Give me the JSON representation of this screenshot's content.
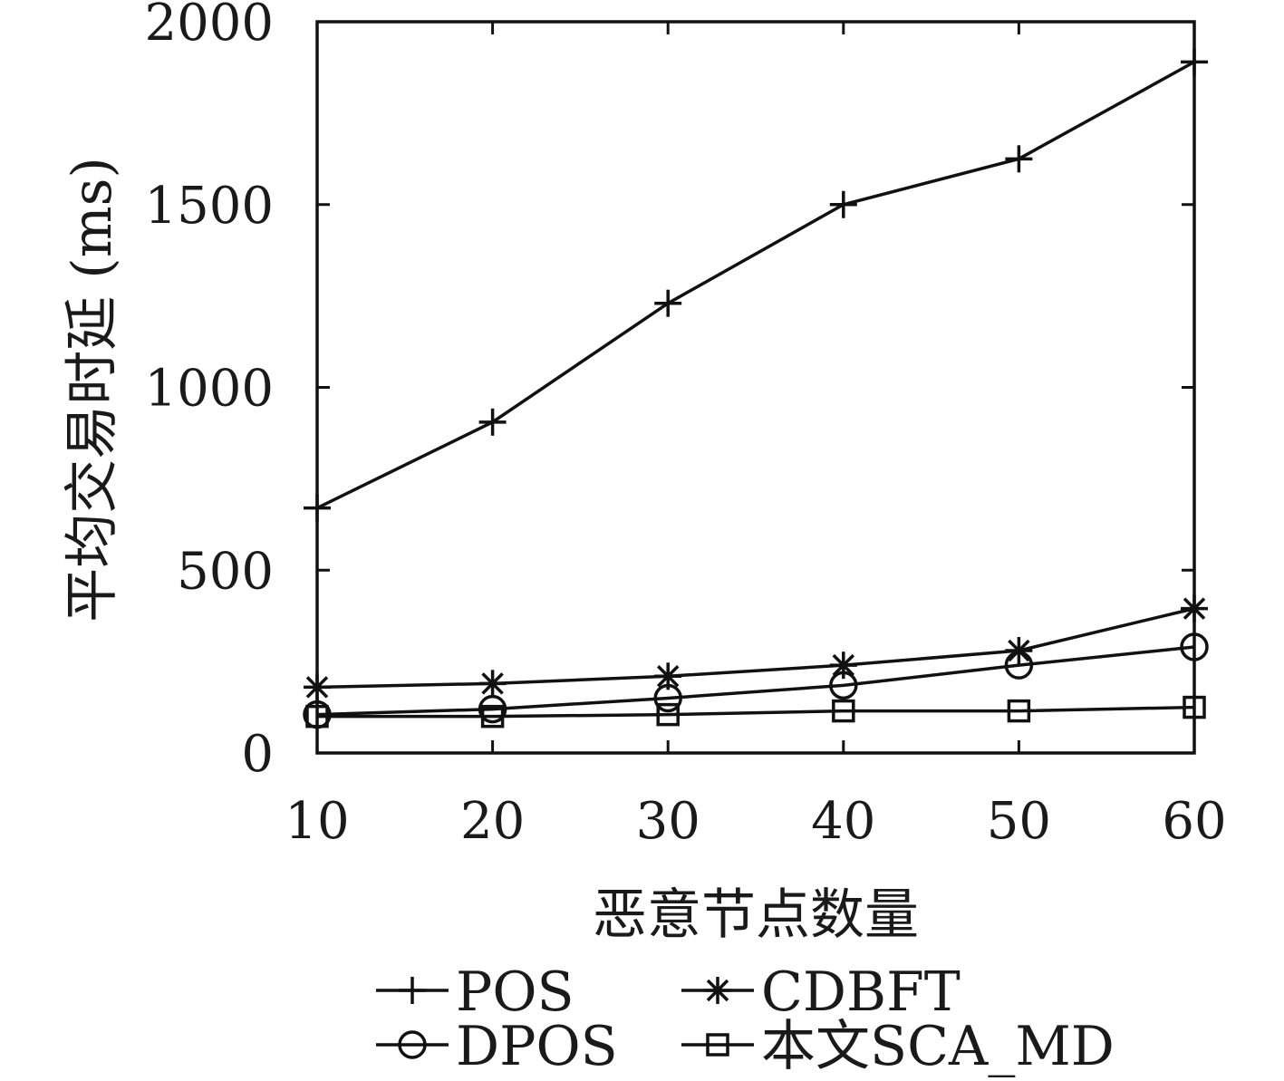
{
  "chart_data": {
    "type": "line",
    "xlabel": "恶意节点数量",
    "ylabel": "平均交易时延 (ms)",
    "x": [
      10,
      20,
      30,
      40,
      50,
      60
    ],
    "xlim": [
      10,
      60
    ],
    "ylim": [
      0,
      2000
    ],
    "xticks": [
      10,
      20,
      30,
      40,
      50,
      60
    ],
    "yticks": [
      0,
      500,
      1000,
      1500,
      2000
    ],
    "grid": false,
    "legend_position": "bottom",
    "series": [
      {
        "name": "POS",
        "marker": "plus",
        "values": [
          670,
          905,
          1230,
          1500,
          1625,
          1890
        ]
      },
      {
        "name": "CDBFT",
        "marker": "star",
        "values": [
          180,
          190,
          210,
          240,
          280,
          395
        ]
      },
      {
        "name": "DPOS",
        "marker": "circle",
        "values": [
          105,
          120,
          150,
          185,
          240,
          290
        ]
      },
      {
        "name": "本文SCA_MD",
        "marker": "square",
        "values": [
          100,
          100,
          105,
          115,
          115,
          125
        ]
      }
    ]
  }
}
